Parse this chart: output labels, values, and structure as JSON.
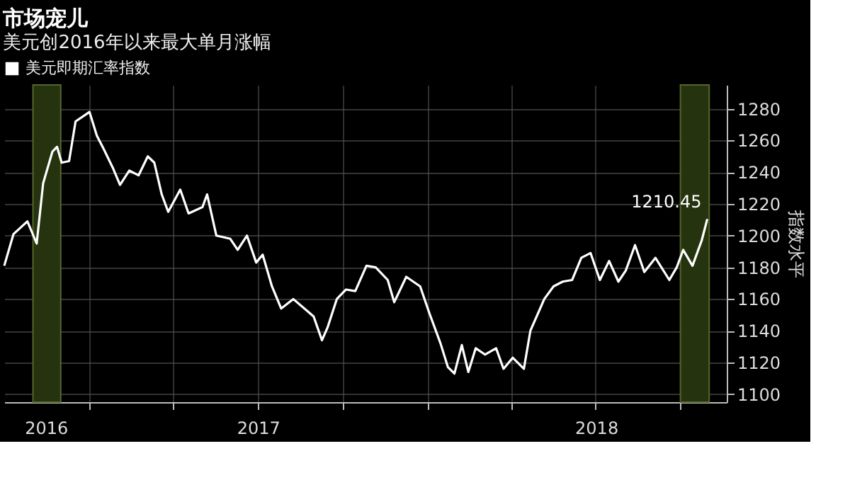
{
  "chart_data": {
    "type": "line",
    "title": "市场宠儿",
    "subtitle": "美元创2016年以来最大单月涨幅",
    "ylabel": "指数水平",
    "x": [
      "2016-10-01",
      "2016-10-11",
      "2016-10-26",
      "2016-11-05",
      "2016-11-12",
      "2016-11-22",
      "2016-11-27",
      "2016-12-02",
      "2016-12-10",
      "2016-12-17",
      "2016-12-27",
      "2017-01-01",
      "2017-01-09",
      "2017-01-16",
      "2017-01-26",
      "2017-02-03",
      "2017-02-13",
      "2017-02-23",
      "2017-03-05",
      "2017-03-12",
      "2017-03-20",
      "2017-03-27",
      "2017-04-09",
      "2017-04-18",
      "2017-05-03",
      "2017-05-08",
      "2017-05-18",
      "2017-06-02",
      "2017-06-10",
      "2017-06-20",
      "2017-06-30",
      "2017-07-07",
      "2017-07-17",
      "2017-07-27",
      "2017-08-09",
      "2017-08-21",
      "2017-08-31",
      "2017-09-09",
      "2017-09-15",
      "2017-09-25",
      "2017-10-05",
      "2017-10-15",
      "2017-10-27",
      "2017-11-06",
      "2017-11-19",
      "2017-11-26",
      "2017-12-09",
      "2017-12-24",
      "2018-01-03",
      "2018-01-15",
      "2018-01-23",
      "2018-01-30",
      "2018-02-07",
      "2018-02-14",
      "2018-02-22",
      "2018-03-04",
      "2018-03-16",
      "2018-03-24",
      "2018-04-03",
      "2018-04-15",
      "2018-04-22",
      "2018-05-07",
      "2018-05-17",
      "2018-05-27",
      "2018-06-06",
      "2018-06-16",
      "2018-06-26",
      "2018-07-06",
      "2018-07-16",
      "2018-07-26",
      "2018-08-03",
      "2018-08-13",
      "2018-08-23",
      "2018-09-04",
      "2018-09-19",
      "2018-09-27",
      "2018-10-04",
      "2018-10-14",
      "2018-10-24",
      "2018-10-30"
    ],
    "series": [
      {
        "name": "美元即期汇率指数",
        "color": "#ffffff",
        "values": [
          1181,
          1201,
          1209,
          1195,
          1233,
          1253,
          1256,
          1246,
          1247,
          1272,
          1276,
          1278,
          1263,
          1255,
          1243,
          1232,
          1241,
          1238,
          1250,
          1246,
          1226,
          1215,
          1229,
          1214,
          1218,
          1226,
          1200,
          1198,
          1191,
          1200,
          1183,
          1188,
          1168,
          1154,
          1160,
          1154,
          1149,
          1134,
          1142,
          1160,
          1166,
          1165,
          1181,
          1180,
          1172,
          1158,
          1174,
          1168,
          1151,
          1132,
          1117,
          1113,
          1131,
          1114,
          1129,
          1125,
          1129,
          1116,
          1123,
          1116,
          1140,
          1160,
          1168,
          1171,
          1172,
          1186,
          1189,
          1172,
          1184,
          1171,
          1178,
          1194,
          1177,
          1186,
          1172,
          1180,
          1191,
          1181,
          1197,
          1210.45
        ]
      }
    ],
    "xlim": [
      "2016-10-01",
      "2018-11-20"
    ],
    "xticks": [
      {
        "value": "2017-01-01",
        "label": null
      },
      {
        "value": "2017-04-01",
        "label": null
      },
      {
        "value": "2017-07-01",
        "label": null
      },
      {
        "value": "2017-10-01",
        "label": null
      },
      {
        "value": "2018-01-01",
        "label": null
      },
      {
        "value": "2018-04-01",
        "label": null
      },
      {
        "value": "2018-07-01",
        "label": null
      },
      {
        "value": "2018-10-01",
        "label": null
      },
      {
        "value": "2016-11-15",
        "label": "2016"
      },
      {
        "value": "2017-07-02",
        "label": "2017"
      },
      {
        "value": "2018-07-02",
        "label": "2018"
      }
    ],
    "ylim": [
      1095,
      1295
    ],
    "yticks": [
      1100,
      1120,
      1140,
      1160,
      1180,
      1200,
      1220,
      1240,
      1260,
      1280
    ],
    "bands": [
      {
        "axis": "x",
        "from": "2016-11-01",
        "to": "2016-12-01",
        "color": "#26330f"
      },
      {
        "axis": "x",
        "from": "2018-10-01",
        "to": "2018-11-01",
        "color": "#26330f"
      }
    ],
    "annotations": [
      {
        "text": "1210.45",
        "x": "2018-10-30",
        "y": 1210.45
      }
    ],
    "grid": true,
    "legend": "top left",
    "marker": "none",
    "line_style": "solid"
  }
}
